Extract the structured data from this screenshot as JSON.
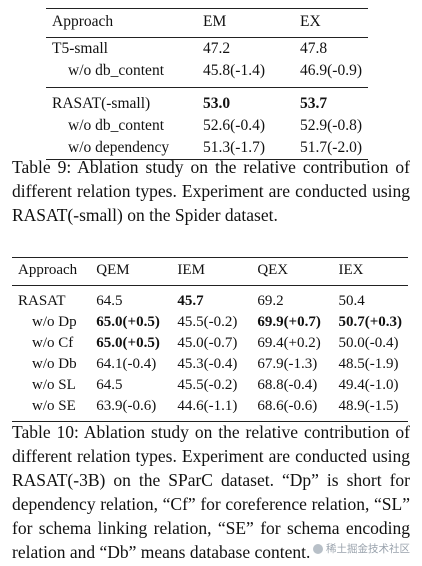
{
  "table9": {
    "headers": [
      "Approach",
      "EM",
      "EX"
    ],
    "rows": [
      {
        "approach": "T5-small",
        "em": "47.2",
        "ex": "47.8"
      },
      {
        "approach": "w/o db_content",
        "em": "45.8(-1.4)",
        "ex": "46.9(-0.9)"
      },
      {
        "approach": "RASAT(-small)",
        "em": "53.0",
        "ex": "53.7"
      },
      {
        "approach": "w/o db_content",
        "em": "52.6(-0.4)",
        "ex": "52.9(-0.8)"
      },
      {
        "approach": "w/o dependency",
        "em": "51.3(-1.7)",
        "ex": "51.7(-2.0)"
      }
    ],
    "caption": "Table 9: Ablation study on the relative contribution of different relation types. Experiment are conducted using RASAT(-small) on the Spider dataset."
  },
  "table10": {
    "headers": [
      "Approach",
      "QEM",
      "IEM",
      "QEX",
      "IEX"
    ],
    "rows": [
      {
        "approach": "RASAT",
        "qem": "64.5",
        "iem": "45.7",
        "qex": "69.2",
        "iex": "50.4"
      },
      {
        "approach": "w/o Dp",
        "qem": "65.0(+0.5)",
        "iem": "45.5(-0.2)",
        "qex": "69.9(+0.7)",
        "iex": "50.7(+0.3)"
      },
      {
        "approach": "w/o Cf",
        "qem": "65.0(+0.5)",
        "iem": "45.0(-0.7)",
        "qex": "69.4(+0.2)",
        "iex": "50.0(-0.4)"
      },
      {
        "approach": "w/o Db",
        "qem": "64.1(-0.4)",
        "iem": "45.3(-0.4)",
        "qex": "67.9(-1.3)",
        "iex": "48.5(-1.9)"
      },
      {
        "approach": "w/o SL",
        "qem": "64.5",
        "iem": "45.5(-0.2)",
        "qex": "68.8(-0.4)",
        "iex": "49.4(-1.0)"
      },
      {
        "approach": "w/o SE",
        "qem": "63.9(-0.6)",
        "iem": "44.6(-1.1)",
        "qex": "68.6(-0.6)",
        "iex": "48.9(-1.5)"
      }
    ],
    "caption": "Table 10: Ablation study on the relative contribution of different relation types. Experiment are conducted using RASAT(-3B) on the SParC dataset. “Dp” is short for dependency relation, “Cf” for coreference relation, “SL” for schema linking relation, “SE” for schema encoding relation and “Db” means database content."
  },
  "watermark": "稀土掘金技术社区"
}
